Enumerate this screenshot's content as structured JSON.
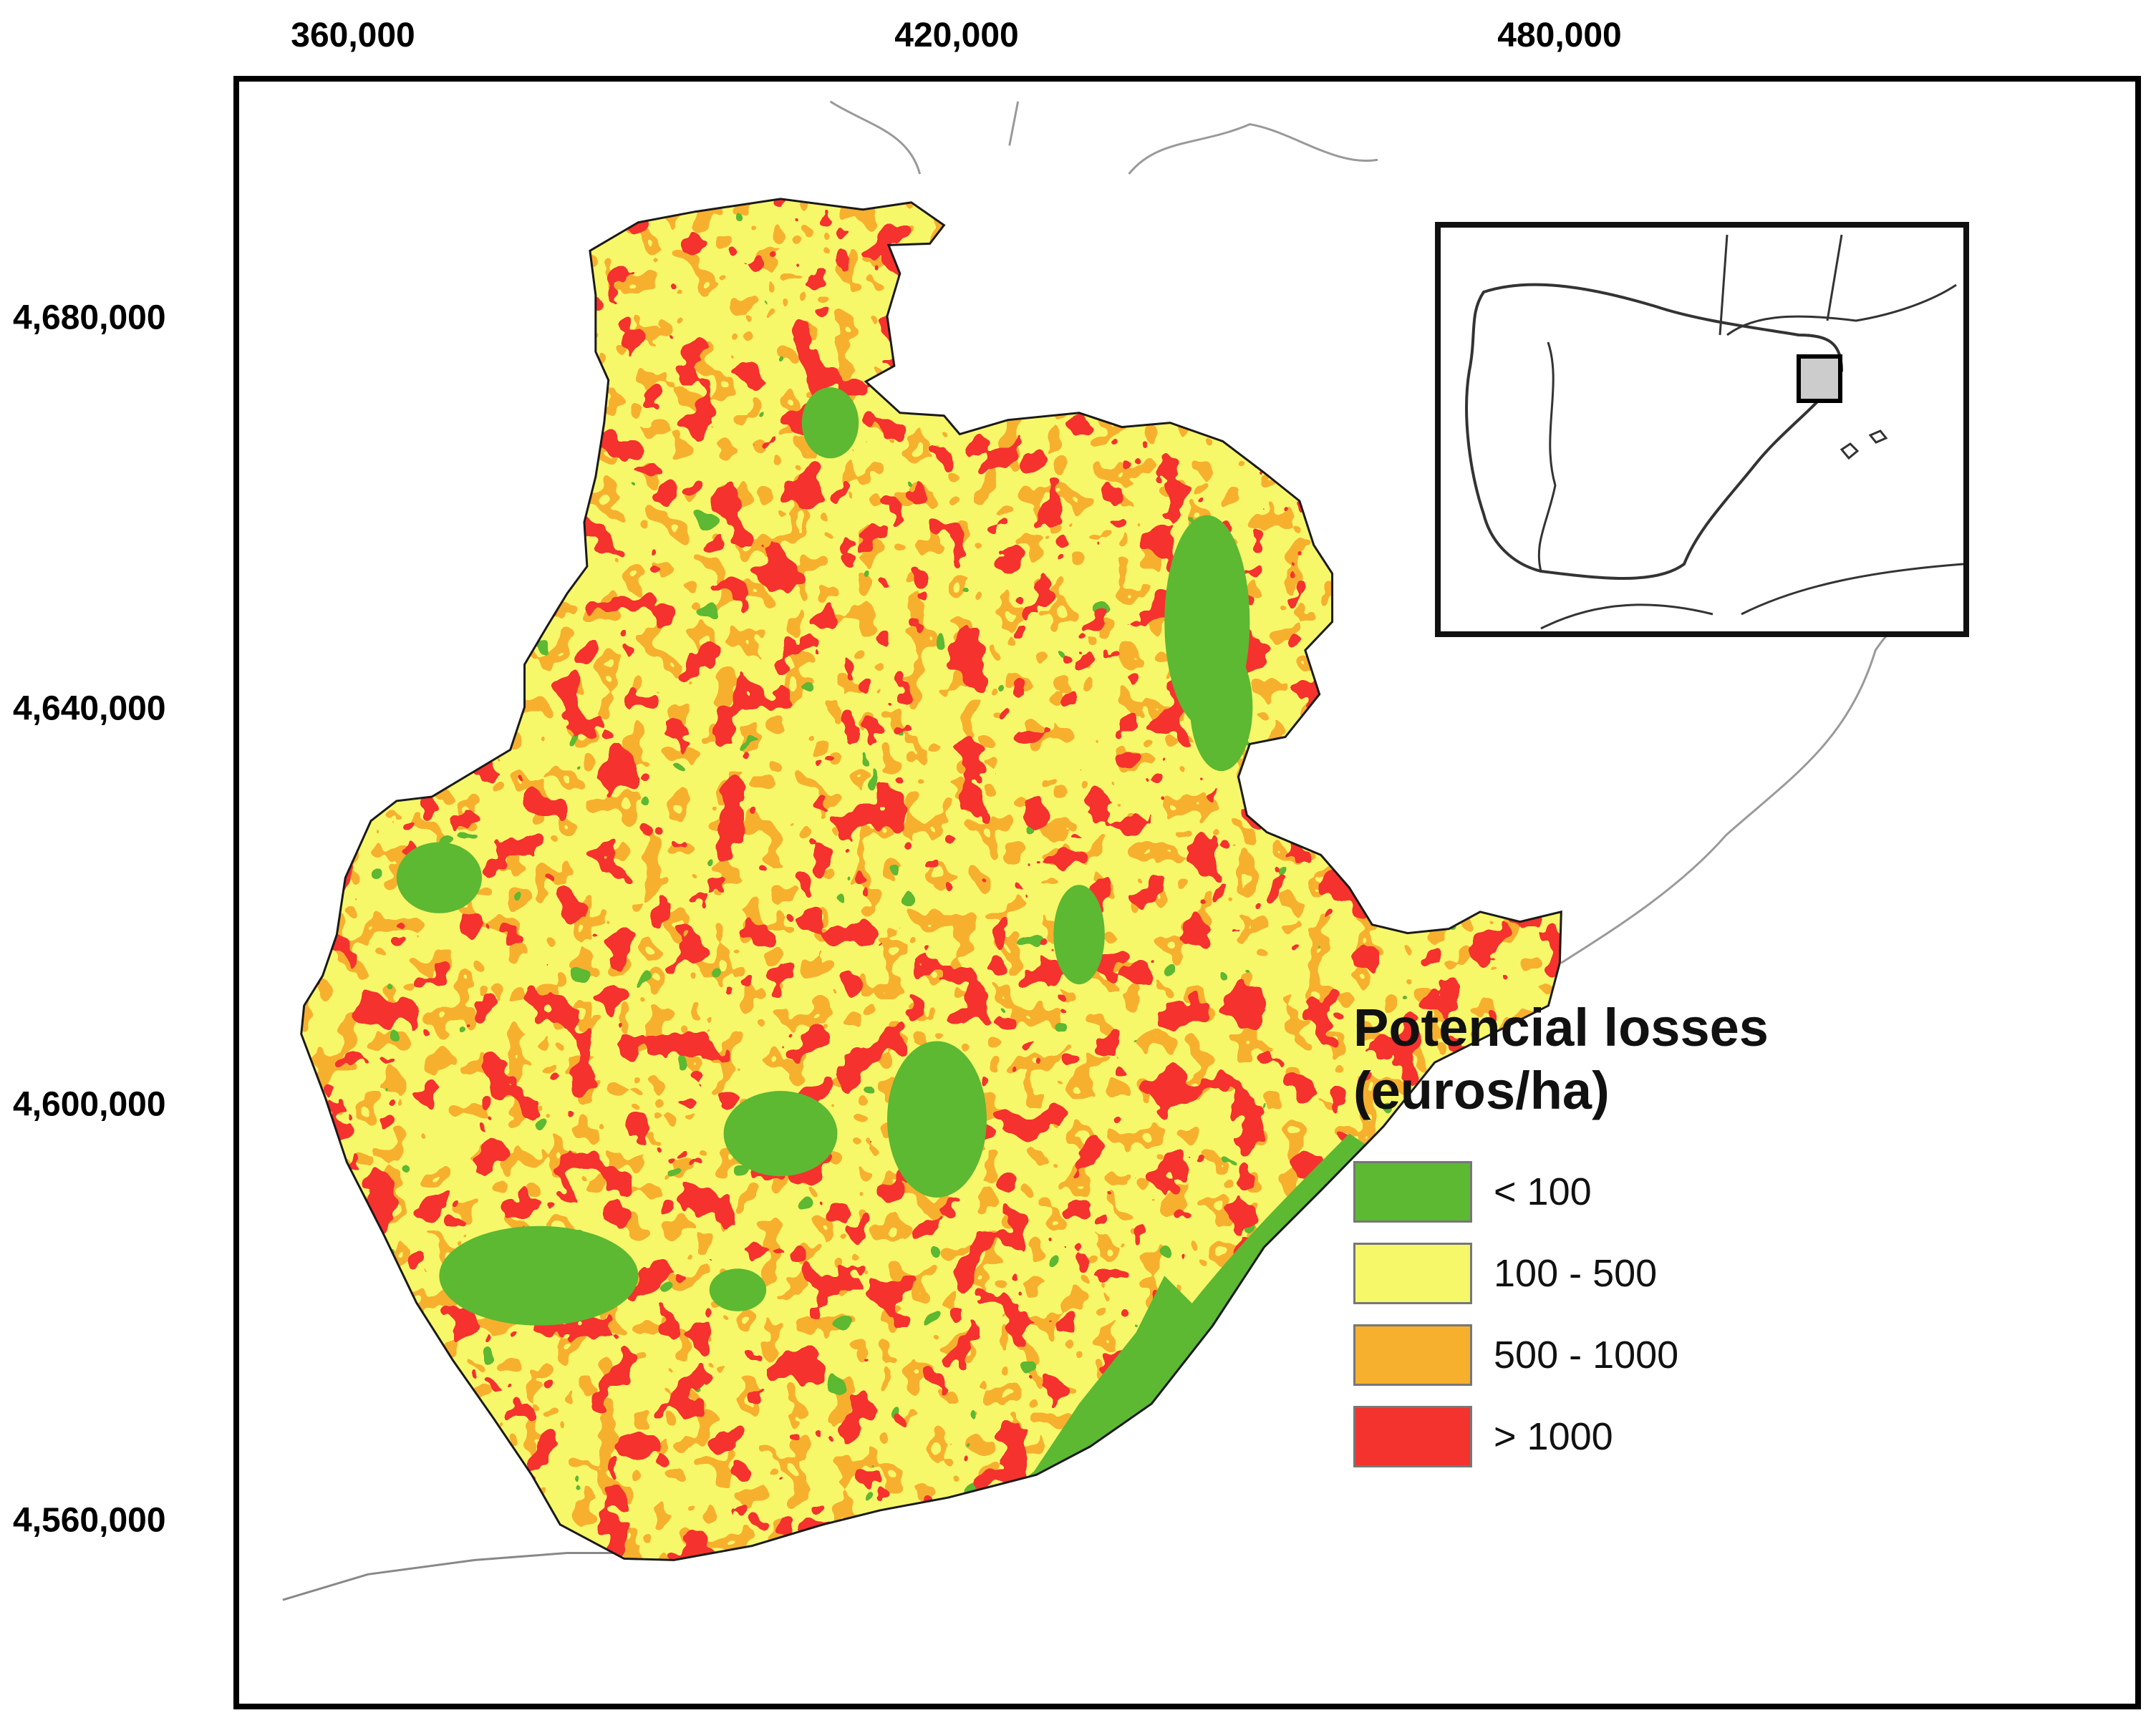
{
  "axes": {
    "x_ticks": [
      "360,000",
      "420,000",
      "480,000"
    ],
    "y_ticks": [
      "4,680,000",
      "4,640,000",
      "4,600,000",
      "4,560,000"
    ]
  },
  "legend": {
    "title_line1": "Potencial losses",
    "title_line2": "(euros/ha)",
    "items": [
      {
        "label": "< 100",
        "color": "#5db832"
      },
      {
        "label": "100 - 500",
        "color": "#f7f76a"
      },
      {
        "label": "500 - 1000",
        "color": "#f7b02e"
      },
      {
        "label": "> 1000",
        "color": "#f5332e"
      }
    ]
  },
  "map": {
    "region_fill_dominant": "#f7f76a",
    "coast_line_color": "#888888",
    "inset_locator": "square-marker"
  }
}
